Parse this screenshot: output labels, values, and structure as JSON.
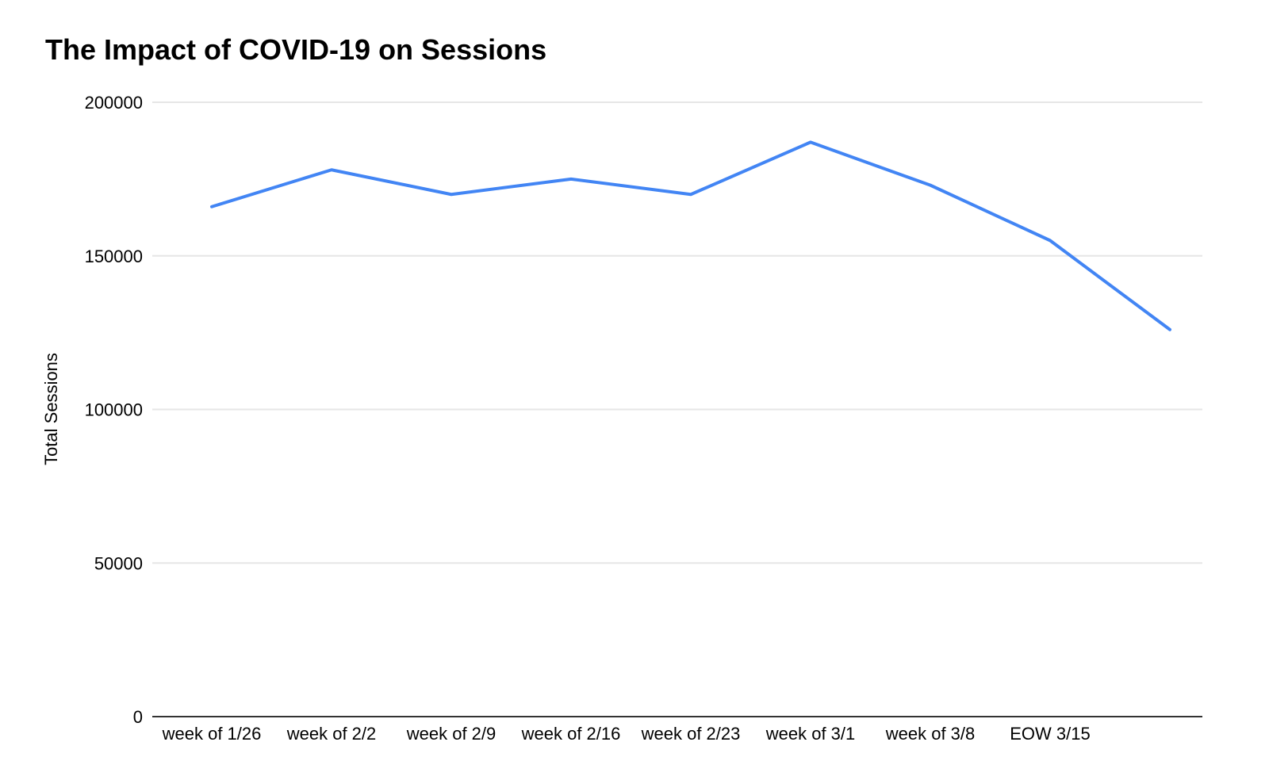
{
  "chart_data": {
    "type": "line",
    "title": "The Impact of COVID-19 on Sessions",
    "xlabel": "",
    "ylabel": "Total Sessions",
    "categories": [
      "week of 1/26",
      "week of 2/2",
      "week of 2/9",
      "week of 2/16",
      "week of 2/23",
      "week of 3/1",
      "week of 3/8",
      "EOW 3/15",
      ""
    ],
    "series": [
      {
        "name": "Total Sessions",
        "values": [
          166000,
          178000,
          170000,
          175000,
          170000,
          187000,
          173000,
          155000,
          126000
        ]
      }
    ],
    "ylim": [
      0,
      200000
    ],
    "yticks": [
      0,
      50000,
      100000,
      150000,
      200000
    ],
    "ytick_labels": [
      "0",
      "50000",
      "100000",
      "150000",
      "200000"
    ],
    "grid": true,
    "legend_position": "none",
    "colors": {
      "line": "#4285f4",
      "gridline": "#e6e6e6",
      "axis_line": "#333333",
      "text": "#000000",
      "background": "#ffffff"
    }
  }
}
